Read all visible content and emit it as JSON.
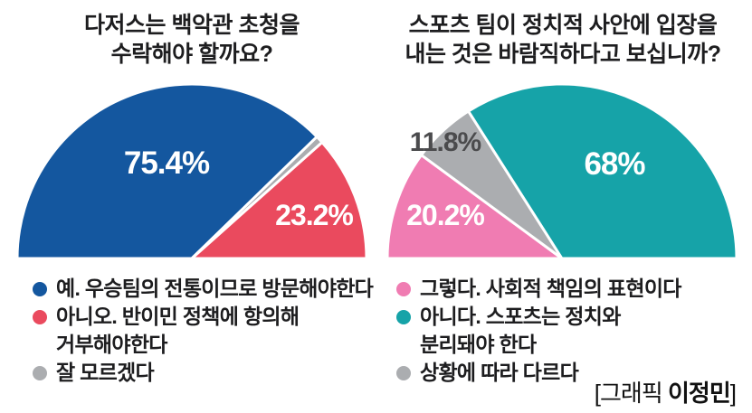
{
  "credit": {
    "prefix": "[그래픽 ",
    "name": "이정민",
    "suffix": "]"
  },
  "chart_data": [
    {
      "type": "pie",
      "variant": "semicircle",
      "legend_position": "bottom",
      "title": "다저스는 백악관 초청을 수락해야 할까요?",
      "title_lines": [
        "다저스는 백악관 초청을",
        "수락해야 할까요?"
      ],
      "categories": [
        "예. 우승팀의 전통이므로 방문해야한다",
        "잘 모르겠다",
        "아니오. 반이민 정책에 항의해 거부해야한다"
      ],
      "values": [
        75.4,
        1.4,
        23.2
      ],
      "slices": [
        {
          "label": "예. 우승팀의 전통이므로 방문해야한다",
          "value": 75.4,
          "color": "#14579f",
          "pct": "75.4%",
          "pct_color": "#ffffff",
          "pct_x": 172,
          "pct_y": 102,
          "pct_size": 35
        },
        {
          "label": "잘 모르겠다",
          "value": 1.4,
          "color": "#abadb0",
          "pct": "",
          "pct_color": "",
          "pct_x": 0,
          "pct_y": 0,
          "pct_size": 0
        },
        {
          "label": "아니오. 반이민 정책에 항의해 거부해야한다",
          "value": 23.2,
          "color": "#ea4a5e",
          "pct": "23.2%",
          "pct_color": "#ffffff",
          "pct_x": 335,
          "pct_y": 159,
          "pct_size": 32
        }
      ],
      "legend": [
        {
          "color": "#14579f",
          "lines": [
            "예. 우승팀의 전통이므로 방문해야한다"
          ]
        },
        {
          "color": "#ea4a5e",
          "lines": [
            "아니오. 반이민 정책에 항의해",
            "거부해야한다"
          ]
        },
        {
          "color": "#abadb0",
          "lines": [
            "잘 모르겠다"
          ]
        }
      ]
    },
    {
      "type": "pie",
      "variant": "semicircle",
      "legend_position": "bottom",
      "title": "스포츠 팀이 정치적 사안에 입장을 내는 것은 바람직하다고 보십니까?",
      "title_lines": [
        "스포츠 팀이 정치적 사안에 입장을",
        "내는 것은 바람직하다고 보십니까?"
      ],
      "categories": [
        "그렇다. 사회적 책임의 표현이다",
        "상황에 따라 다르다",
        "아니다. 스포츠는 정치와 분리돼야 한다"
      ],
      "values": [
        20.2,
        11.8,
        68
      ],
      "slices": [
        {
          "label": "그렇다. 사회적 책임의 표현이다",
          "value": 20.2,
          "color": "#f07cb2",
          "pct": "20.2%",
          "pct_color": "#ffffff",
          "pct_x": 71,
          "pct_y": 159,
          "pct_size": 32
        },
        {
          "label": "상황에 따라 다르다",
          "value": 11.8,
          "color": "#abadb0",
          "pct": "11.8%",
          "pct_color": "#4b4b4d",
          "pct_x": 71,
          "pct_y": 77,
          "pct_size": 30
        },
        {
          "label": "아니다. 스포츠는 정치와 분리돼야 한다",
          "value": 68,
          "color": "#16a3a8",
          "pct": "68%",
          "pct_color": "#ffffff",
          "pct_x": 258,
          "pct_y": 103,
          "pct_size": 35
        }
      ],
      "legend": [
        {
          "color": "#f07cb2",
          "lines": [
            "그렇다. 사회적 책임의 표현이다"
          ]
        },
        {
          "color": "#16a3a8",
          "lines": [
            "아니다. 스포츠는 정치와",
            "분리돼야 한다"
          ]
        },
        {
          "color": "#abadb0",
          "lines": [
            "상황에 따라 다르다"
          ]
        }
      ]
    }
  ]
}
